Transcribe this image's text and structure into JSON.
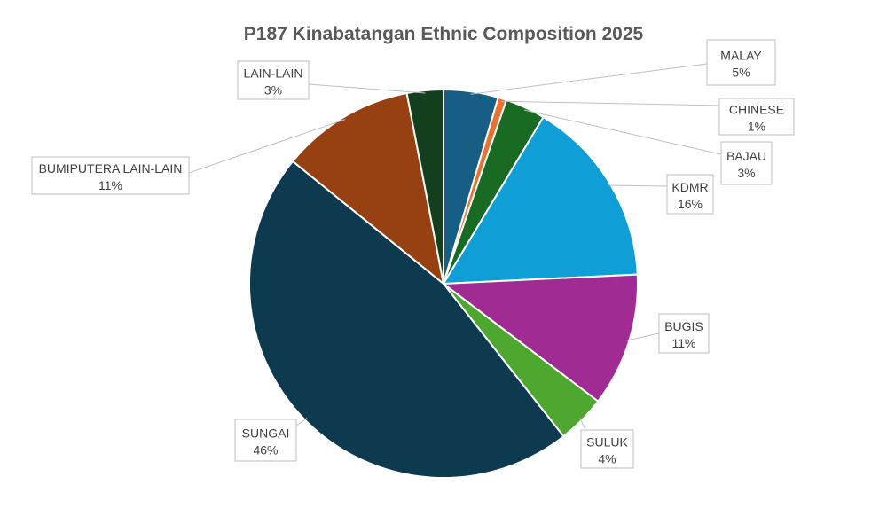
{
  "chart_data": {
    "type": "pie",
    "title": "P187 Kinabatangan Ethnic Composition 2025",
    "slices": [
      {
        "name": "MALAY",
        "label": "5%",
        "value": 4.5,
        "color": "#165E83"
      },
      {
        "name": "CHINESE",
        "label": "1%",
        "value": 0.7,
        "color": "#E97132"
      },
      {
        "name": "BAJAU",
        "label": "3%",
        "value": 3.3,
        "color": "#196B24"
      },
      {
        "name": "KDMR",
        "label": "16%",
        "value": 15.5,
        "color": "#0F9ED5"
      },
      {
        "name": "BUGIS",
        "label": "11%",
        "value": 11.0,
        "color": "#A02B93"
      },
      {
        "name": "SULUK",
        "label": "4%",
        "value": 4.0,
        "color": "#4EA72E"
      },
      {
        "name": "SUNGAI",
        "label": "46%",
        "value": 46.0,
        "color": "#0E3A50"
      },
      {
        "name": "BUMIPUTERA LAIN-LAIN",
        "label": "11%",
        "value": 11.0,
        "color": "#974011"
      },
      {
        "name": "LAIN-LAIN",
        "label": "3%",
        "value": 3.0,
        "color": "#133F1F"
      }
    ]
  }
}
